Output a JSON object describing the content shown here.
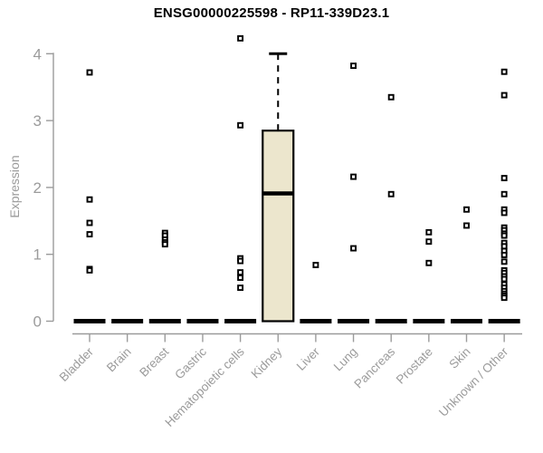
{
  "title": "ENSG00000225598 - RP11-339D23.1",
  "colors": {
    "box_fill": "#ECE6CD",
    "box_border": "#000000",
    "median": "#000000",
    "whisker": "#000000",
    "outlier_fill": "#ffffff",
    "outlier_stroke": "#000000",
    "axis": "#9b9b9b",
    "tick_label": "#9b9b9b",
    "title_color": "#000000"
  },
  "chart_data": {
    "type": "boxplot",
    "title": "ENSG00000225598 - RP11-339D23.1",
    "xlabel": "",
    "ylabel": "Expression",
    "ylim": [
      0,
      4
    ],
    "yticks": [
      0,
      1,
      2,
      3,
      4
    ],
    "grid": false,
    "legend": false,
    "categories": [
      "Bladder",
      "Brain",
      "Breast",
      "Gastric",
      "Hematopoietic cells",
      "Kidney",
      "Liver",
      "Lung",
      "Pancreas",
      "Prostate",
      "Skin",
      "Unknown / Other"
    ],
    "boxes": [
      {
        "category": "Bladder",
        "q1": 0,
        "median": 0,
        "q3": 0,
        "whisker_low": 0,
        "whisker_high": 0,
        "outliers": [
          3.72,
          1.82,
          1.47,
          1.3,
          0.78,
          0.76
        ]
      },
      {
        "category": "Brain",
        "q1": 0,
        "median": 0,
        "q3": 0,
        "whisker_low": 0,
        "whisker_high": 0,
        "outliers": []
      },
      {
        "category": "Breast",
        "q1": 0,
        "median": 0,
        "q3": 0,
        "whisker_low": 0,
        "whisker_high": 0,
        "outliers": [
          1.32,
          1.28,
          1.22,
          1.18,
          1.15
        ]
      },
      {
        "category": "Gastric",
        "q1": 0,
        "median": 0,
        "q3": 0,
        "whisker_low": 0,
        "whisker_high": 0,
        "outliers": []
      },
      {
        "category": "Hematopoietic cells",
        "q1": 0,
        "median": 0,
        "q3": 0,
        "whisker_low": 0,
        "whisker_high": 0,
        "outliers": [
          4.23,
          2.93,
          0.94,
          0.9,
          0.73,
          0.65,
          0.5
        ]
      },
      {
        "category": "Kidney",
        "q1": 0,
        "median": 1.91,
        "q3": 2.85,
        "whisker_low": 0,
        "whisker_high": 4.0,
        "outliers": []
      },
      {
        "category": "Liver",
        "q1": 0,
        "median": 0,
        "q3": 0,
        "whisker_low": 0,
        "whisker_high": 0,
        "outliers": [
          0.84
        ]
      },
      {
        "category": "Lung",
        "q1": 0,
        "median": 0,
        "q3": 0,
        "whisker_low": 0,
        "whisker_high": 0,
        "outliers": [
          3.82,
          2.16,
          1.09
        ]
      },
      {
        "category": "Pancreas",
        "q1": 0,
        "median": 0,
        "q3": 0,
        "whisker_low": 0,
        "whisker_high": 0,
        "outliers": [
          3.35,
          1.9
        ]
      },
      {
        "category": "Prostate",
        "q1": 0,
        "median": 0,
        "q3": 0,
        "whisker_low": 0,
        "whisker_high": 0,
        "outliers": [
          1.33,
          1.19,
          0.87
        ]
      },
      {
        "category": "Skin",
        "q1": 0,
        "median": 0,
        "q3": 0,
        "whisker_low": 0,
        "whisker_high": 0,
        "outliers": [
          1.67,
          1.43
        ]
      },
      {
        "category": "Unknown / Other",
        "q1": 0,
        "median": 0,
        "q3": 0,
        "whisker_low": 0,
        "whisker_high": 0,
        "outliers": [
          3.73,
          3.38,
          2.14,
          1.9,
          1.67,
          1.62,
          1.4,
          1.36,
          1.31,
          1.28,
          1.17,
          1.12,
          1.05,
          0.99,
          0.89,
          0.76,
          0.72,
          0.67,
          0.63,
          0.55,
          0.5,
          0.45,
          0.41,
          0.38,
          0.35
        ]
      }
    ]
  }
}
